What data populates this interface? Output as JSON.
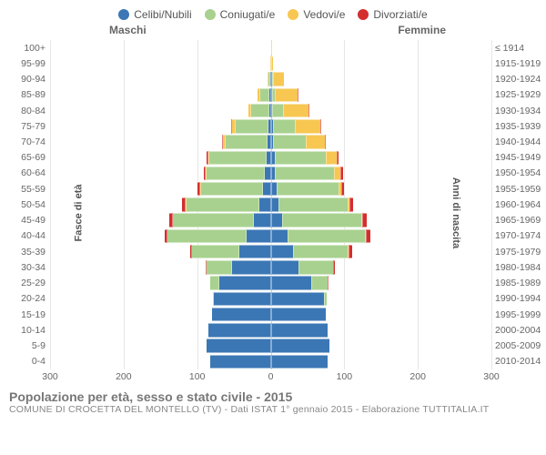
{
  "chart": {
    "type": "population-pyramid",
    "legend": [
      {
        "label": "Celibi/Nubili",
        "color": "#3b77b5"
      },
      {
        "label": "Coniugati/e",
        "color": "#a8d18f"
      },
      {
        "label": "Vedovi/e",
        "color": "#f7c752"
      },
      {
        "label": "Divorziati/e",
        "color": "#d32e2e"
      }
    ],
    "side_titles": {
      "left": "Maschi",
      "right": "Femmine"
    },
    "y_title_left": "Fasce di età",
    "y_title_right": "Anni di nascita",
    "xlim": 300,
    "xticks": [
      300,
      200,
      100,
      0,
      100,
      200,
      300
    ],
    "background": "#ffffff",
    "grid_color": "#e6e6e6",
    "font_family": "Arial",
    "tick_fontsize": 10.5,
    "title_fontsize": 14,
    "rows": [
      {
        "age": "100+",
        "birth": "≤ 1914",
        "m": [
          0,
          0,
          0,
          0
        ],
        "f": [
          0,
          0,
          4,
          0
        ]
      },
      {
        "age": "95-99",
        "birth": "1915-1919",
        "m": [
          0,
          0,
          2,
          0
        ],
        "f": [
          0,
          0,
          7,
          0
        ]
      },
      {
        "age": "90-94",
        "birth": "1920-1924",
        "m": [
          2,
          3,
          3,
          0
        ],
        "f": [
          1,
          2,
          30,
          0
        ]
      },
      {
        "age": "85-89",
        "birth": "1925-1929",
        "m": [
          4,
          25,
          6,
          0
        ],
        "f": [
          3,
          9,
          60,
          1
        ]
      },
      {
        "age": "80-84",
        "birth": "1930-1934",
        "m": [
          4,
          50,
          6,
          0
        ],
        "f": [
          3,
          30,
          70,
          1
        ]
      },
      {
        "age": "75-79",
        "birth": "1935-1939",
        "m": [
          6,
          90,
          8,
          1
        ],
        "f": [
          5,
          60,
          70,
          2
        ]
      },
      {
        "age": "70-74",
        "birth": "1940-1944",
        "m": [
          8,
          115,
          6,
          2
        ],
        "f": [
          6,
          90,
          50,
          3
        ]
      },
      {
        "age": "65-69",
        "birth": "1945-1949",
        "m": [
          12,
          155,
          3,
          4
        ],
        "f": [
          10,
          140,
          30,
          5
        ]
      },
      {
        "age": "60-64",
        "birth": "1950-1954",
        "m": [
          15,
          160,
          2,
          5
        ],
        "f": [
          12,
          160,
          18,
          6
        ]
      },
      {
        "age": "55-59",
        "birth": "1955-1959",
        "m": [
          20,
          170,
          1,
          6
        ],
        "f": [
          15,
          170,
          8,
          7
        ]
      },
      {
        "age": "50-54",
        "birth": "1960-1964",
        "m": [
          30,
          200,
          1,
          8
        ],
        "f": [
          20,
          190,
          5,
          10
        ]
      },
      {
        "age": "45-49",
        "birth": "1965-1969",
        "m": [
          45,
          220,
          0,
          10
        ],
        "f": [
          30,
          215,
          3,
          12
        ]
      },
      {
        "age": "40-44",
        "birth": "1970-1974",
        "m": [
          65,
          215,
          0,
          9
        ],
        "f": [
          45,
          210,
          2,
          13
        ]
      },
      {
        "age": "35-39",
        "birth": "1975-1979",
        "m": [
          85,
          130,
          0,
          5
        ],
        "f": [
          60,
          150,
          1,
          8
        ]
      },
      {
        "age": "30-34",
        "birth": "1980-1984",
        "m": [
          105,
          70,
          0,
          2
        ],
        "f": [
          75,
          95,
          0,
          4
        ]
      },
      {
        "age": "25-29",
        "birth": "1985-1989",
        "m": [
          140,
          25,
          0,
          0
        ],
        "f": [
          110,
          45,
          0,
          1
        ]
      },
      {
        "age": "20-24",
        "birth": "1990-1994",
        "m": [
          155,
          3,
          0,
          0
        ],
        "f": [
          145,
          7,
          0,
          0
        ]
      },
      {
        "age": "15-19",
        "birth": "1995-1999",
        "m": [
          160,
          0,
          0,
          0
        ],
        "f": [
          150,
          0,
          0,
          0
        ]
      },
      {
        "age": "10-14",
        "birth": "2000-2004",
        "m": [
          170,
          0,
          0,
          0
        ],
        "f": [
          155,
          0,
          0,
          0
        ]
      },
      {
        "age": "5-9",
        "birth": "2005-2009",
        "m": [
          175,
          0,
          0,
          0
        ],
        "f": [
          160,
          0,
          0,
          0
        ]
      },
      {
        "age": "0-4",
        "birth": "2010-2014",
        "m": [
          165,
          0,
          0,
          0
        ],
        "f": [
          155,
          0,
          0,
          0
        ]
      }
    ]
  },
  "caption": {
    "title": "Popolazione per età, sesso e stato civile - 2015",
    "subtitle": "COMUNE DI CROCETTA DEL MONTELLO (TV) - Dati ISTAT 1° gennaio 2015 - Elaborazione TUTTITALIA.IT"
  }
}
